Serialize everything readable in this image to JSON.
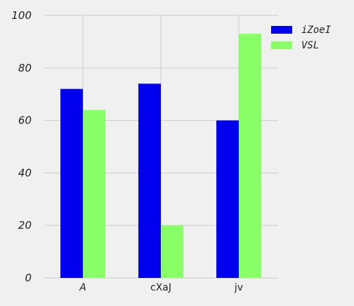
{
  "chart_data": {
    "type": "bar",
    "categories": [
      "A",
      "cXaJ",
      "jv"
    ],
    "series": [
      {
        "name": "iZoeI",
        "values": [
          72,
          74,
          60
        ],
        "color": "#0000ee"
      },
      {
        "name": "VSL",
        "values": [
          64,
          20,
          93
        ],
        "color": "#88ff66"
      }
    ],
    "ylim": [
      0,
      100
    ],
    "yticks": [
      "0",
      "20",
      "40",
      "60",
      "80",
      "100"
    ],
    "grid": true,
    "legend_position": "top-right"
  }
}
